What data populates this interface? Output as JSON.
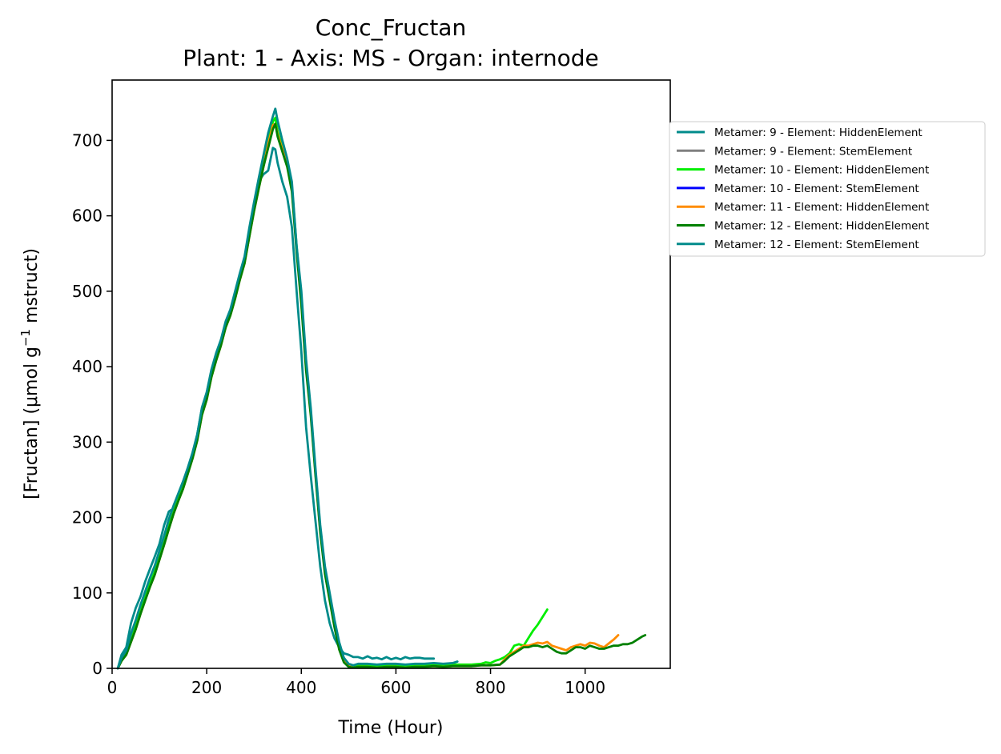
{
  "chart_data": {
    "type": "line",
    "title": "Conc_Fructan",
    "subtitle": "Plant: 1 - Axis: MS - Organ: internode",
    "xlabel": "Time (Hour)",
    "ylabel_prefix": "[Fructan] (μmol g",
    "ylabel_sup": "−1",
    "ylabel_suffix": " mstruct)",
    "xlim": [
      0,
      1180
    ],
    "ylim": [
      0,
      780
    ],
    "xticks": [
      0,
      200,
      400,
      600,
      800,
      1000
    ],
    "yticks": [
      0,
      100,
      200,
      300,
      400,
      500,
      600,
      700
    ],
    "grid": false,
    "legend_position": "outside-right",
    "series": [
      {
        "name": "Metamer: 9 - Element: HiddenElement",
        "color": "#008b8b",
        "x": [
          12,
          20,
          30,
          40,
          50,
          60,
          70,
          80,
          90,
          100,
          110,
          120,
          125,
          130,
          140,
          150,
          160,
          170,
          180,
          190,
          200,
          210,
          220,
          230,
          240,
          250,
          260,
          270,
          280,
          290,
          295,
          300,
          310,
          320,
          330,
          340,
          345,
          350,
          360,
          370,
          380,
          390,
          400,
          410,
          420,
          430,
          440,
          450,
          460,
          470,
          480,
          490,
          500,
          510,
          520,
          530,
          540,
          550,
          560,
          570,
          580,
          590,
          600,
          610,
          620,
          630,
          640,
          650,
          660,
          670,
          680
        ],
        "y": [
          0,
          18,
          28,
          60,
          80,
          95,
          115,
          132,
          148,
          165,
          190,
          208,
          210,
          205,
          225,
          245,
          265,
          285,
          310,
          345,
          365,
          395,
          415,
          430,
          455,
          470,
          495,
          520,
          540,
          580,
          600,
          615,
          645,
          655,
          660,
          690,
          688,
          670,
          645,
          625,
          585,
          500,
          420,
          320,
          255,
          195,
          135,
          90,
          60,
          40,
          28,
          20,
          18,
          15,
          15,
          13,
          16,
          13,
          14,
          12,
          15,
          12,
          14,
          12,
          15,
          13,
          14,
          14,
          13,
          13,
          13
        ]
      },
      {
        "name": "Metamer: 9 - Element: StemElement",
        "color": "#808080",
        "x": [],
        "y": []
      },
      {
        "name": "Metamer: 10 - Element: HiddenElement",
        "color": "#00ee00",
        "x": [
          12,
          20,
          30,
          40,
          50,
          60,
          70,
          80,
          90,
          100,
          110,
          120,
          130,
          140,
          150,
          160,
          170,
          180,
          190,
          200,
          210,
          220,
          230,
          240,
          250,
          260,
          270,
          280,
          290,
          300,
          310,
          320,
          330,
          340,
          345,
          350,
          360,
          370,
          380,
          390,
          400,
          410,
          420,
          430,
          440,
          450,
          460,
          470,
          480,
          490,
          500,
          510,
          520,
          540,
          560,
          580,
          600,
          620,
          640,
          660,
          680,
          700,
          720,
          740,
          760,
          780,
          790,
          800,
          810,
          820,
          830,
          840,
          850,
          860,
          870,
          880,
          890,
          900,
          910,
          920
        ],
        "y": [
          0,
          12,
          22,
          40,
          58,
          78,
          96,
          112,
          128,
          148,
          168,
          190,
          210,
          225,
          240,
          260,
          280,
          305,
          340,
          360,
          390,
          410,
          430,
          455,
          470,
          495,
          520,
          540,
          575,
          610,
          640,
          670,
          700,
          725,
          730,
          712,
          690,
          670,
          640,
          560,
          490,
          400,
          340,
          260,
          185,
          130,
          95,
          60,
          30,
          12,
          4,
          2,
          4,
          4,
          3,
          4,
          4,
          3,
          4,
          4,
          5,
          4,
          5,
          5,
          5,
          6,
          8,
          7,
          10,
          12,
          15,
          20,
          30,
          32,
          30,
          40,
          50,
          58,
          68,
          78
        ]
      },
      {
        "name": "Metamer: 10 - Element: StemElement",
        "color": "#0000ff",
        "x": [],
        "y": []
      },
      {
        "name": "Metamer: 11 - Element: HiddenElement",
        "color": "#ff8c00",
        "x": [
          12,
          20,
          30,
          40,
          50,
          60,
          70,
          80,
          90,
          100,
          110,
          120,
          130,
          140,
          150,
          160,
          170,
          180,
          190,
          200,
          210,
          220,
          230,
          240,
          250,
          260,
          270,
          280,
          290,
          300,
          310,
          320,
          330,
          340,
          345,
          350,
          360,
          370,
          380,
          390,
          400,
          410,
          420,
          430,
          440,
          450,
          460,
          470,
          480,
          490,
          500,
          510,
          520,
          540,
          560,
          580,
          600,
          620,
          640,
          660,
          680,
          700,
          720,
          740,
          760,
          780,
          800,
          820,
          830,
          840,
          850,
          860,
          870,
          880,
          890,
          900,
          910,
          920,
          930,
          940,
          950,
          960,
          970,
          980,
          990,
          1000,
          1010,
          1020,
          1030,
          1040,
          1050,
          1060,
          1070
        ],
        "y": [
          0,
          10,
          18,
          35,
          52,
          72,
          90,
          108,
          124,
          144,
          164,
          185,
          205,
          222,
          238,
          258,
          278,
          302,
          336,
          356,
          386,
          408,
          428,
          452,
          468,
          490,
          515,
          537,
          572,
          606,
          636,
          665,
          695,
          720,
          722,
          708,
          688,
          668,
          635,
          555,
          485,
          398,
          338,
          258,
          182,
          128,
          92,
          58,
          28,
          10,
          3,
          1,
          2,
          2,
          1,
          2,
          2,
          1,
          2,
          2,
          3,
          2,
          3,
          3,
          3,
          4,
          4,
          5,
          12,
          18,
          22,
          26,
          30,
          30,
          32,
          34,
          33,
          35,
          30,
          28,
          26,
          24,
          28,
          30,
          32,
          30,
          34,
          33,
          30,
          28,
          33,
          38,
          44
        ]
      },
      {
        "name": "Metamer: 12 - Element: HiddenElement",
        "color": "#008000",
        "x": [
          12,
          20,
          30,
          40,
          50,
          60,
          70,
          80,
          90,
          100,
          110,
          120,
          130,
          140,
          150,
          160,
          170,
          180,
          190,
          200,
          210,
          220,
          230,
          240,
          250,
          260,
          270,
          280,
          290,
          300,
          310,
          320,
          330,
          340,
          345,
          350,
          360,
          370,
          380,
          390,
          400,
          410,
          420,
          430,
          440,
          450,
          460,
          470,
          480,
          490,
          500,
          510,
          520,
          540,
          560,
          580,
          600,
          620,
          640,
          660,
          680,
          700,
          720,
          740,
          760,
          780,
          800,
          820,
          830,
          840,
          850,
          860,
          870,
          880,
          890,
          900,
          910,
          920,
          930,
          940,
          950,
          960,
          970,
          980,
          990,
          1000,
          1010,
          1020,
          1030,
          1040,
          1050,
          1060,
          1070,
          1080,
          1090,
          1100,
          1110,
          1120,
          1127
        ],
        "y": [
          0,
          10,
          18,
          35,
          52,
          72,
          90,
          108,
          124,
          144,
          164,
          185,
          205,
          222,
          238,
          258,
          278,
          302,
          336,
          356,
          386,
          408,
          428,
          452,
          468,
          490,
          515,
          537,
          572,
          606,
          636,
          665,
          690,
          715,
          722,
          705,
          685,
          665,
          632,
          552,
          482,
          395,
          335,
          255,
          180,
          125,
          90,
          55,
          25,
          8,
          2,
          1,
          2,
          2,
          1,
          2,
          2,
          1,
          2,
          2,
          3,
          2,
          3,
          3,
          3,
          4,
          4,
          5,
          10,
          16,
          20,
          24,
          28,
          28,
          30,
          30,
          28,
          30,
          26,
          22,
          20,
          20,
          24,
          28,
          28,
          26,
          30,
          28,
          26,
          26,
          28,
          30,
          30,
          32,
          32,
          34,
          38,
          42,
          44
        ]
      },
      {
        "name": "Metamer: 12 - Element: StemElement",
        "color": "#008b8b",
        "x": [
          12,
          20,
          30,
          40,
          50,
          60,
          70,
          80,
          90,
          100,
          110,
          120,
          130,
          140,
          150,
          160,
          170,
          180,
          190,
          200,
          210,
          220,
          230,
          240,
          250,
          260,
          270,
          280,
          290,
          300,
          310,
          320,
          330,
          340,
          345,
          350,
          360,
          370,
          380,
          390,
          400,
          410,
          420,
          430,
          440,
          450,
          460,
          470,
          480,
          490,
          500,
          510,
          520,
          540,
          560,
          580,
          600,
          620,
          640,
          660,
          680,
          700,
          720,
          730
        ],
        "y": [
          0,
          14,
          24,
          46,
          64,
          84,
          102,
          120,
          136,
          156,
          176,
          198,
          216,
          232,
          248,
          266,
          286,
          310,
          346,
          366,
          396,
          418,
          436,
          460,
          476,
          500,
          524,
          546,
          584,
          618,
          650,
          680,
          710,
          732,
          742,
          726,
          700,
          676,
          645,
          560,
          500,
          410,
          345,
          265,
          190,
          135,
          100,
          65,
          35,
          14,
          6,
          4,
          6,
          6,
          5,
          6,
          6,
          5,
          6,
          6,
          7,
          6,
          7,
          9
        ]
      }
    ]
  }
}
